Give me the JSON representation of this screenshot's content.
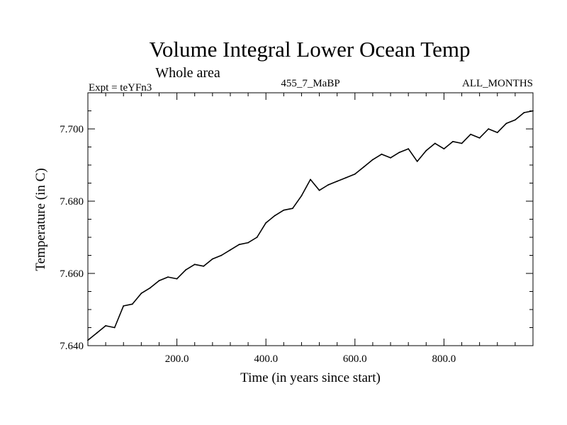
{
  "chart_data": {
    "type": "line",
    "title": "Volume Integral Lower Ocean Temp",
    "subtitle": "Whole area",
    "experiment_label": "Expt = teYFn3",
    "run_label": "455_7_MaBP",
    "months_label": "ALL_MONTHS",
    "xlabel": "Time (in years since start)",
    "ylabel": "Temperature (in C)",
    "xlim": [
      0,
      1000
    ],
    "ylim": [
      7.64,
      7.71
    ],
    "x_ticks": [
      200,
      400,
      600,
      800
    ],
    "x_tick_labels": [
      "200.0",
      "400.0",
      "600.0",
      "800.0"
    ],
    "y_ticks": [
      7.64,
      7.66,
      7.68,
      7.7
    ],
    "y_tick_labels": [
      "7.640",
      "7.660",
      "7.680",
      "7.700"
    ],
    "series": [
      {
        "name": "Volume integral lower ocean temperature",
        "color": "#000000",
        "x": [
          0,
          20,
          40,
          60,
          80,
          100,
          120,
          140,
          160,
          180,
          200,
          220,
          240,
          260,
          280,
          300,
          320,
          340,
          360,
          380,
          400,
          420,
          440,
          460,
          480,
          500,
          520,
          540,
          560,
          580,
          600,
          620,
          640,
          660,
          680,
          700,
          720,
          740,
          760,
          780,
          800,
          820,
          840,
          860,
          880,
          900,
          920,
          940,
          960,
          980,
          1000
        ],
        "values": [
          7.6415,
          7.6435,
          7.6455,
          7.645,
          7.651,
          7.6515,
          7.6545,
          7.656,
          7.658,
          7.659,
          7.6585,
          7.661,
          7.6625,
          7.662,
          7.664,
          7.665,
          7.6665,
          7.668,
          7.6685,
          7.67,
          7.674,
          7.676,
          7.6775,
          7.678,
          7.6815,
          7.686,
          7.683,
          7.6845,
          7.6855,
          7.6865,
          7.6875,
          7.6895,
          7.6915,
          7.693,
          7.692,
          7.6935,
          7.6945,
          7.691,
          7.694,
          7.696,
          7.6945,
          7.6965,
          7.696,
          7.6985,
          7.6975,
          7.7,
          7.699,
          7.7015,
          7.7025,
          7.7045,
          7.705
        ]
      }
    ]
  }
}
